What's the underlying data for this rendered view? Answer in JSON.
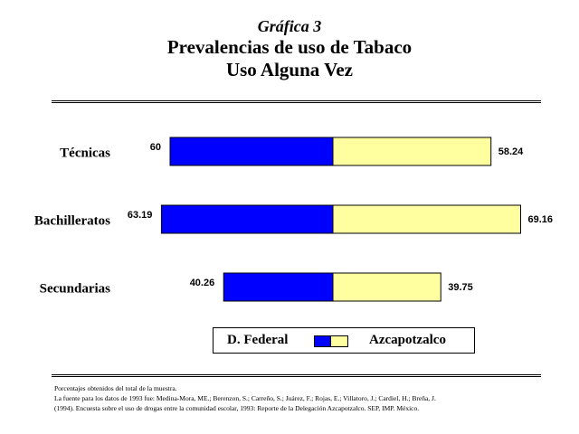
{
  "header": {
    "label": "Gráfica 3",
    "title": "Prevalencias de uso de Tabaco",
    "subtitle": "Uso Alguna Vez"
  },
  "chart_data": {
    "type": "bar",
    "orientation": "horizontal-diverging",
    "categories": [
      "Técnicas",
      "Bachilleratos",
      "Secundarias"
    ],
    "series": [
      {
        "name": "D. Federal",
        "values": [
          60,
          63.19,
          40.26
        ],
        "color": "#0000ff"
      },
      {
        "name": "Azcapotzalco",
        "values": [
          58.24,
          69.16,
          39.75
        ],
        "color": "#ffffa0"
      }
    ],
    "value_labels": [
      [
        "60",
        "63.19",
        "40.26"
      ],
      [
        "58.24",
        "69.16",
        "39.75"
      ]
    ],
    "legend": "bottom"
  },
  "legend": {
    "left_name": "D. Federal",
    "right_name": "Azcapotzalco"
  },
  "footnotes": [
    "Porcentajes obtenidos del total de la muestra.",
    "La fuente para los datos de 1993 fue: Medina-Mora, ME.; Berenzon, S.; Carreño, S.; Juárez, F.; Rojas, E.; Villatoro, J.; Cardiel, H.; Breña, J.",
    "(1994). Encuesta sobre el uso de drogas entre la comunidad escolar, 1993: Reporte de la Delegación Azcapotzalco. SEP, IMP. México."
  ]
}
